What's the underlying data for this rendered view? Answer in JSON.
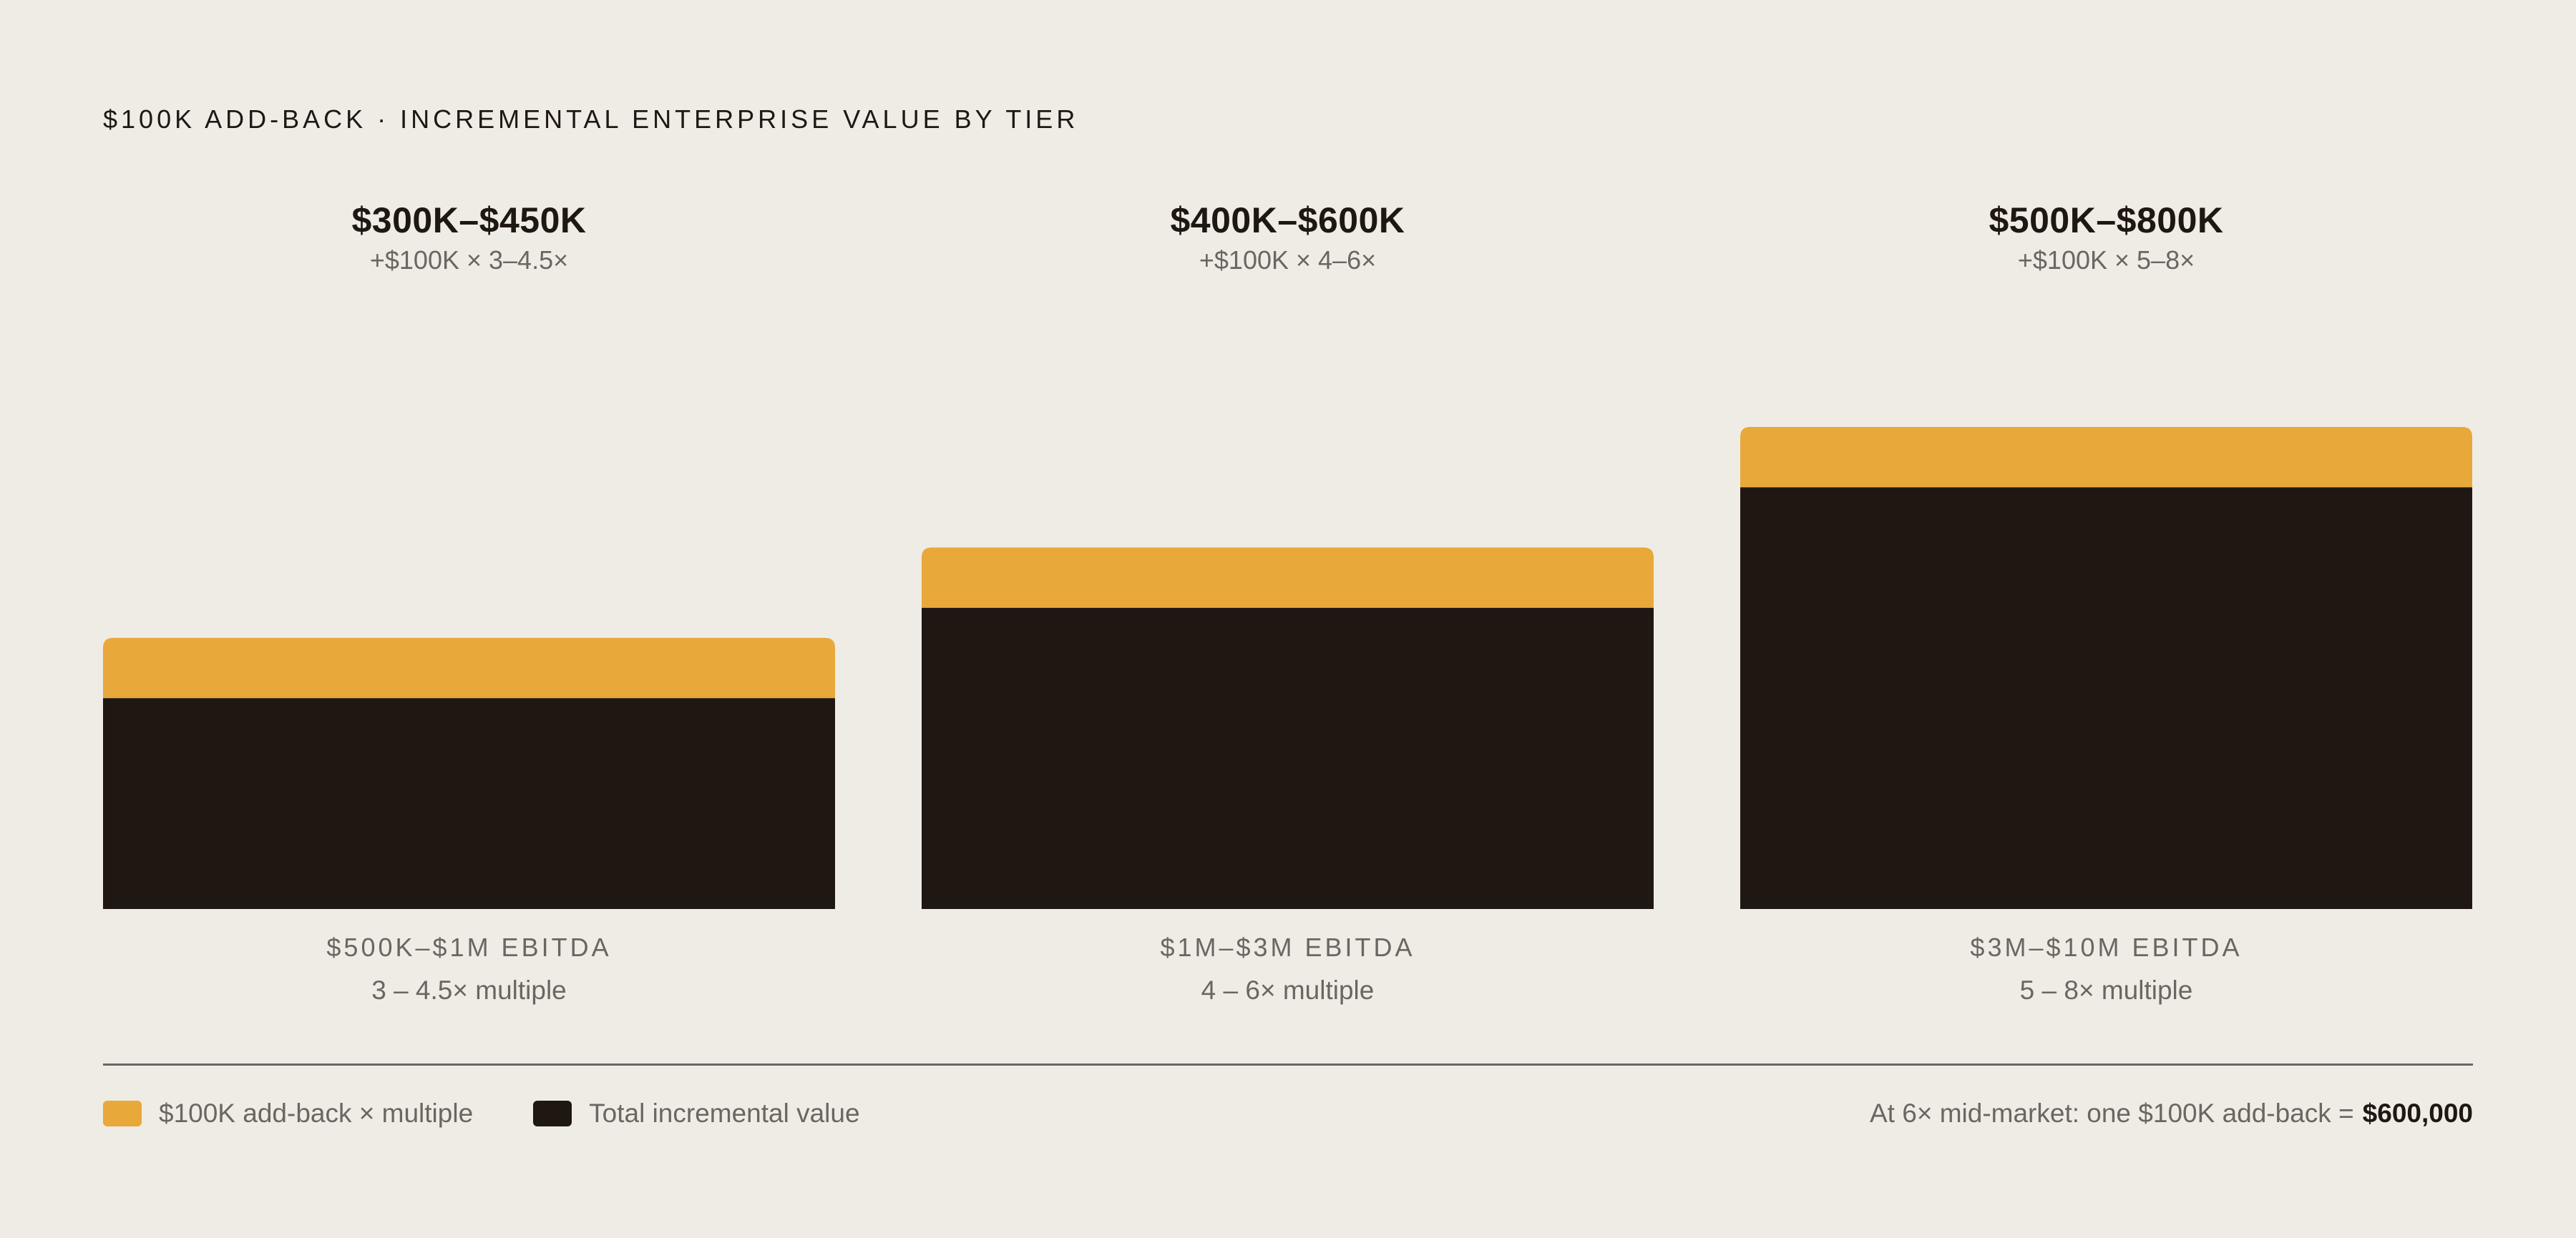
{
  "chart_title": "$100K ADD-BACK · INCREMENTAL ENTERPRISE VALUE BY TIER",
  "chart_data": {
    "type": "bar",
    "stacked": true,
    "categories": [
      "$500K–$1M EBITDA",
      "$1M–$3M EBITDA",
      "$3M–$10M EBITDA"
    ],
    "multiples": [
      "3 – 4.5× multiple",
      "4 – 6× multiple",
      "5 – 8× multiple"
    ],
    "range_labels": [
      "$300K–$450K",
      "$400K–$600K",
      "$500K–$800K"
    ],
    "formula_labels": [
      "+$100K × 3–4.5×",
      "+$100K × 4–6×",
      "+$100K × 5–8×"
    ],
    "series": [
      {
        "name": "Total incremental value",
        "color": "#1f1712",
        "values": [
          350,
          500,
          700
        ]
      },
      {
        "name": "$100K add-back × multiple",
        "color": "#e8a83a",
        "values": [
          100,
          100,
          100
        ]
      }
    ],
    "ylim": [
      0,
      800
    ],
    "grid": false,
    "legend_position": "bottom-left"
  },
  "legend": {
    "items": [
      {
        "label": "$100K add-back × multiple",
        "color": "#e8a83a"
      },
      {
        "label": "Total incremental value",
        "color": "#1f1712"
      }
    ]
  },
  "note": {
    "prefix": "At 6× mid-market: one $100K add-back =",
    "value": "$600,000"
  }
}
